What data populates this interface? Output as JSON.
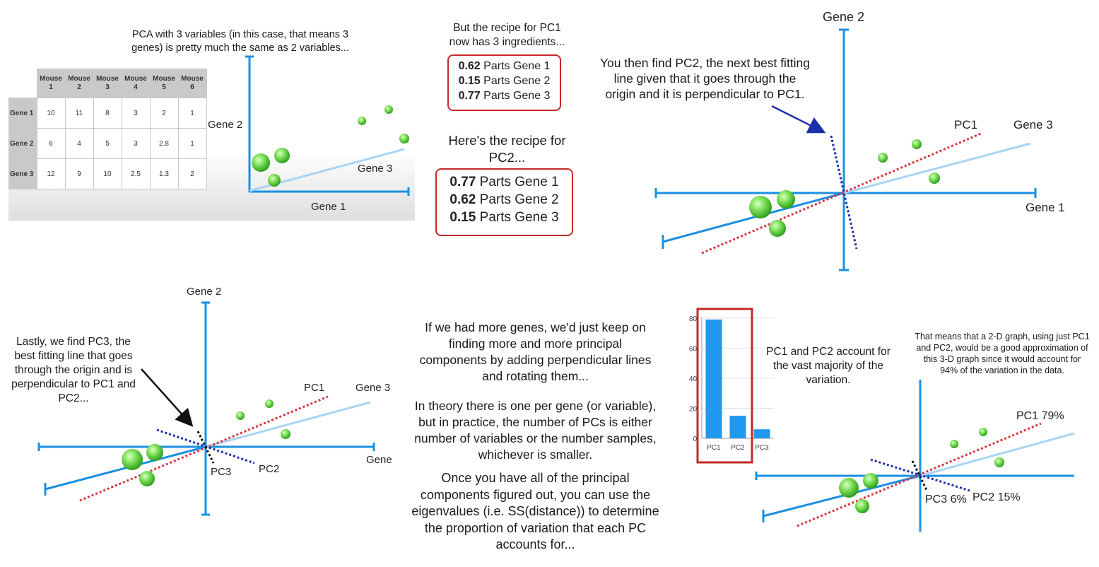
{
  "panel1": {
    "caption_lines": [
      "PCA with 3 variables (in this case, that means 3",
      "genes) is pretty much the same as 2 variables..."
    ],
    "table": {
      "columns": [
        "Mouse 1",
        "Mouse 2",
        "Mouse 3",
        "Mouse 4",
        "Mouse 5",
        "Mouse 6"
      ],
      "rows": [
        {
          "name": "Gene 1",
          "values": [
            "10",
            "11",
            "8",
            "3",
            "2",
            "1"
          ]
        },
        {
          "name": "Gene 2",
          "values": [
            "6",
            "4",
            "5",
            "3",
            "2.8",
            "1"
          ]
        },
        {
          "name": "Gene 3",
          "values": [
            "12",
            "9",
            "10",
            "2.5",
            "1.3",
            "2"
          ]
        }
      ]
    },
    "axis_labels": {
      "gene1": "Gene 1",
      "gene2": "Gene 2",
      "gene3": "Gene 3"
    }
  },
  "recipe1": {
    "caption_lines": [
      "But the recipe for PC1",
      "now has 3 ingredients..."
    ],
    "items": [
      {
        "value": "0.62",
        "text": "Parts Gene 1"
      },
      {
        "value": "0.15",
        "text": "Parts Gene 2"
      },
      {
        "value": "0.77",
        "text": "Parts Gene 3"
      }
    ]
  },
  "recipe2": {
    "caption_lines": [
      "Here's the recipe for",
      "PC2..."
    ],
    "items": [
      {
        "value": "0.77",
        "text": "Parts Gene 1"
      },
      {
        "value": "0.62",
        "text": "Parts Gene 2"
      },
      {
        "value": "0.15",
        "text": "Parts Gene 3"
      }
    ]
  },
  "panel3": {
    "caption_lines": [
      "You then find PC2, the next best fitting",
      "line given that it goes through the",
      "origin and it is perpendicular to PC1."
    ],
    "labels": {
      "gene2": "Gene 2",
      "gene3": "Gene 3",
      "gene1": "Gene 1",
      "pc1": "PC1"
    }
  },
  "panel4": {
    "caption_lines": [
      "Lastly, we find PC3, the",
      "best fitting line that goes",
      "through the origin and is",
      "perpendicular to PC1 and",
      "PC2..."
    ],
    "labels": {
      "gene2": "Gene 2",
      "gene3": "Gene 3",
      "gene1": "Gene",
      "pc1": "PC1",
      "pc2": "PC2",
      "pc3": "PC3"
    }
  },
  "middle_text": {
    "para1_lines": [
      "If we had more genes, we'd just keep on",
      "finding more and more principal",
      "components by adding perpendicular lines",
      "and rotating them..."
    ],
    "para2_lines": [
      "In theory there is one per gene (or variable),",
      "but in practice, the number of PCs is either",
      "number of variables or the number samples,",
      "whichever is smaller."
    ],
    "para3_lines": [
      "Once you have all of the principal",
      "components figured out, you can use the",
      "eigenvalues (i.e. SS(distance)) to determine",
      "the proportion of variation that each PC",
      "accounts for..."
    ]
  },
  "scree": {
    "caption_lines": [
      "PC1 and PC2 account for",
      "the vast majority of the",
      "variation."
    ]
  },
  "panel6": {
    "caption_lines": [
      "That means that a 2-D graph, using just PC1",
      "and PC2, would be a good approximation of",
      "this 3-D graph since it would account for",
      "94% of the variation in the data."
    ],
    "labels": {
      "pc1": "PC1 79%",
      "pc2": "PC2 15%",
      "pc3": "PC3 6%"
    }
  },
  "colors": {
    "axis": "#1a8fe3",
    "pc1": "#d9333f",
    "pc2": "#1a2fa8",
    "pc3": "#111111",
    "highlight": "#c62828",
    "bar": "#1f98f0",
    "gene3_axis": "#a9d4f5"
  },
  "chart_data": {
    "type": "bar",
    "categories": [
      "PC1",
      "PC2",
      "PC3"
    ],
    "values": [
      79,
      15,
      6
    ],
    "yticks": [
      "0",
      "20",
      "40",
      "60",
      "80"
    ],
    "ylim": [
      0,
      84
    ]
  }
}
